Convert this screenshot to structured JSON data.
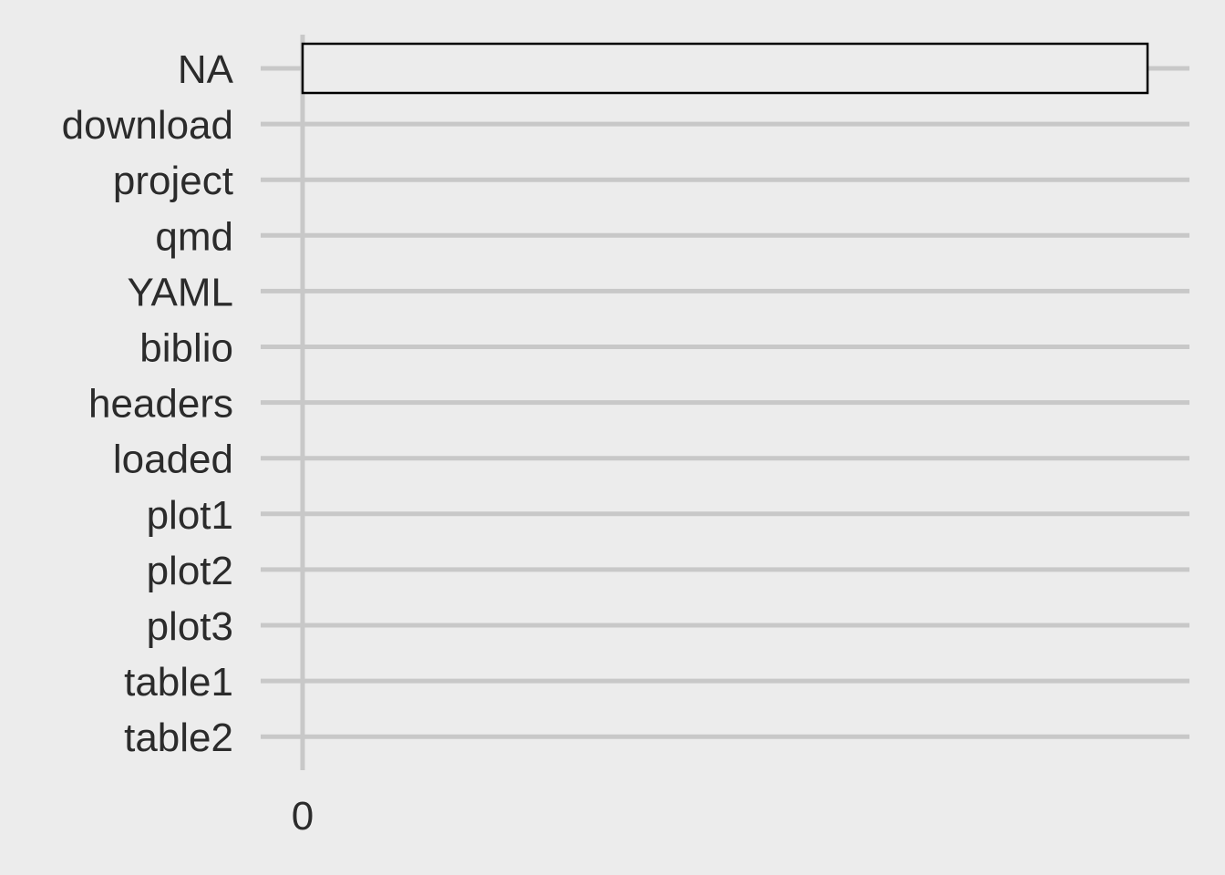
{
  "chart_data": {
    "type": "bar",
    "orientation": "horizontal",
    "categories": [
      "NA",
      "download",
      "project",
      "qmd",
      "YAML",
      "biblio",
      "headers",
      "loaded",
      "plot1",
      "plot2",
      "plot3",
      "table1",
      "table2"
    ],
    "values": [
      1,
      0,
      0,
      0,
      0,
      0,
      0,
      0,
      0,
      0,
      0,
      0,
      0
    ],
    "x_ticks": [
      "0"
    ],
    "xlim": [
      0,
      1.05
    ],
    "title": "",
    "xlabel": "",
    "ylabel": "",
    "grid": true,
    "legend": "none",
    "colors": {
      "background": "#ececec",
      "grid": "#c8c8c8",
      "bar_fill": "#ececec",
      "bar_stroke": "#000000",
      "text": "#2b2b2b"
    }
  }
}
